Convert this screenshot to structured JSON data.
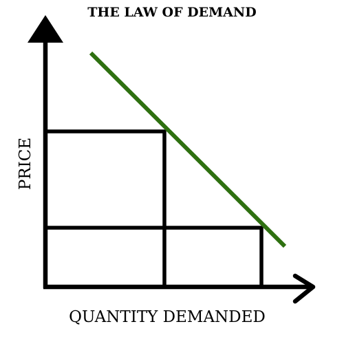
{
  "title": "THE LAW OF DEMAND",
  "x_axis_label": "QUANTITY DEMANDED",
  "y_axis_label": "PRICE",
  "colors": {
    "demand_curve": "#2e7010",
    "axes_and_guides": "#000000",
    "background": "#ffffff"
  },
  "icons": {
    "y_axis_head": "up-arrow-triangle",
    "x_axis_head": "right-chevron-arrow"
  }
}
